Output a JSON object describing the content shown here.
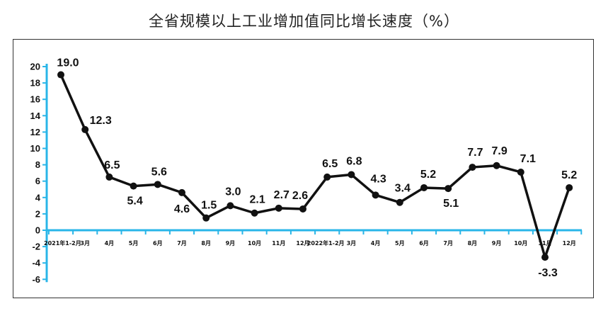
{
  "chart": {
    "title": "全省规模以上工业增加值同比增长速度（%）"
  },
  "colors": {
    "line": "#111111",
    "axis": "#29b6e8",
    "frame": "#333333"
  },
  "chart_data": {
    "type": "line",
    "title": "全省规模以上工业增加值同比增长速度（%）",
    "xlabel": "",
    "ylabel": "",
    "ylim": [
      -6,
      20
    ],
    "yticks": [
      -6,
      -4,
      -2,
      0,
      2,
      4,
      6,
      8,
      10,
      12,
      14,
      16,
      18,
      20
    ],
    "grid": false,
    "legend": "none",
    "categories": [
      "2021年1-2月",
      "3月",
      "4月",
      "5月",
      "6月",
      "7月",
      "8月",
      "9月",
      "10月",
      "11月",
      "12月",
      "2022年1-2月",
      "3月",
      "4月",
      "5月",
      "6月",
      "7月",
      "8月",
      "9月",
      "10月",
      "11月",
      "12月"
    ],
    "values": [
      19.0,
      12.3,
      6.5,
      5.4,
      5.6,
      4.6,
      1.5,
      3.0,
      2.1,
      2.7,
      2.6,
      6.5,
      6.8,
      4.3,
      3.4,
      5.2,
      5.1,
      7.7,
      7.9,
      7.1,
      -3.3,
      5.2
    ],
    "data_labels": [
      "19.0",
      "12.3",
      "6.5",
      "5.4",
      "5.6",
      "4.6",
      "1.5",
      "3.0",
      "2.1",
      "2.7",
      "2.6",
      "6.5",
      "6.8",
      "4.3",
      "3.4",
      "5.2",
      "5.1",
      "7.7",
      "7.9",
      "7.1",
      "-3.3",
      "5.2"
    ]
  }
}
